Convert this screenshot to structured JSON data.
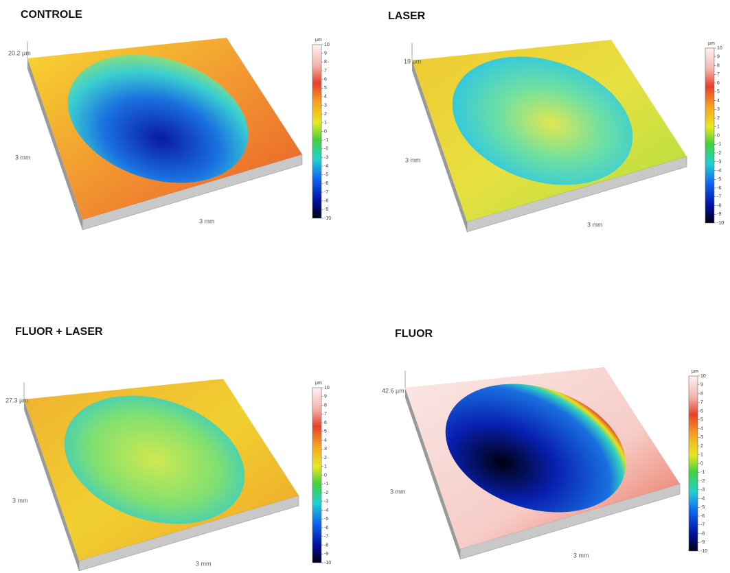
{
  "panels": [
    {
      "title": "CONTROLE",
      "height_label": "20.2 µm",
      "y_label": "3 mm",
      "x_label": "3 mm",
      "colorbar": {
        "unit": "µm",
        "ticks": [
          10,
          9,
          8,
          7,
          6,
          5,
          4,
          3,
          2,
          1,
          0,
          -1,
          -2,
          -3,
          -4,
          -5,
          -6,
          -7,
          -8,
          -9,
          -10
        ]
      }
    },
    {
      "title": "LASER",
      "height_label": "19 µm",
      "y_label": "3 mm",
      "x_label": "3 mm",
      "colorbar": {
        "unit": "µm",
        "ticks": [
          10,
          9,
          8,
          7,
          6,
          5,
          4,
          3,
          2,
          1,
          0,
          -1,
          -2,
          -3,
          -4,
          -5,
          -6,
          -7,
          -8,
          -9,
          -10
        ]
      }
    },
    {
      "title": "FLUOR + LASER",
      "height_label": "27.3 µm",
      "y_label": "3 mm",
      "x_label": "3 mm",
      "colorbar": {
        "unit": "µm",
        "ticks": [
          10,
          9,
          8,
          7,
          6,
          5,
          4,
          3,
          2,
          1,
          0,
          -1,
          -2,
          -3,
          -4,
          -5,
          -6,
          -7,
          -8,
          -9,
          -10
        ]
      }
    },
    {
      "title": "FLUOR",
      "height_label": "42.6 µm",
      "y_label": "3 mm",
      "x_label": "3 mm",
      "colorbar": {
        "unit": "µm",
        "ticks": [
          10,
          9,
          8,
          7,
          6,
          5,
          4,
          3,
          2,
          1,
          0,
          -1,
          -2,
          -3,
          -4,
          -5,
          -6,
          -7,
          -8,
          -9,
          -10
        ]
      }
    }
  ]
}
